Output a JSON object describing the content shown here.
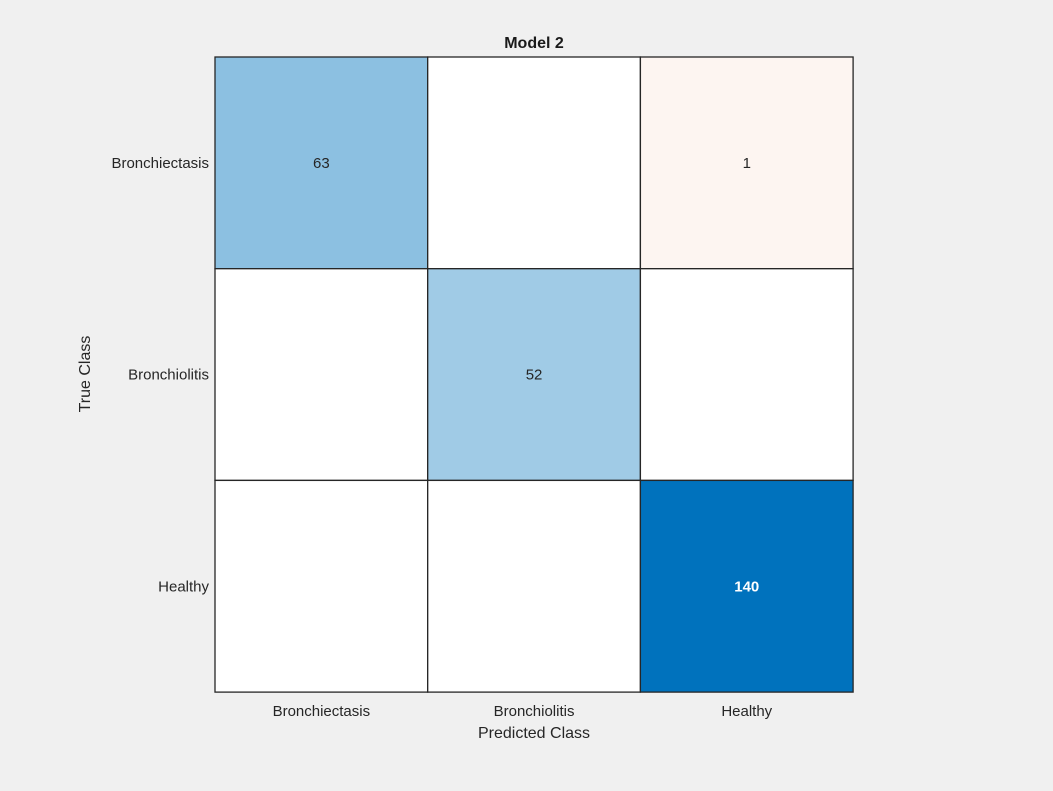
{
  "chart_data": {
    "type": "heatmap",
    "subtype": "confusion-matrix",
    "title": "Model 2",
    "xlabel": "Predicted Class",
    "ylabel": "True Class",
    "x_categories": [
      "Bronchiectasis",
      "Bronchiolitis",
      "Healthy"
    ],
    "y_categories": [
      "Bronchiectasis",
      "Bronchiolitis",
      "Healthy"
    ],
    "matrix": [
      [
        63,
        null,
        1
      ],
      [
        null,
        52,
        null
      ],
      [
        null,
        null,
        140
      ]
    ],
    "colors": {
      "correct_max": "#0072bd",
      "incorrect": "#d95319",
      "background": "#ffffff",
      "figure_background": "#f0f0f0"
    }
  }
}
